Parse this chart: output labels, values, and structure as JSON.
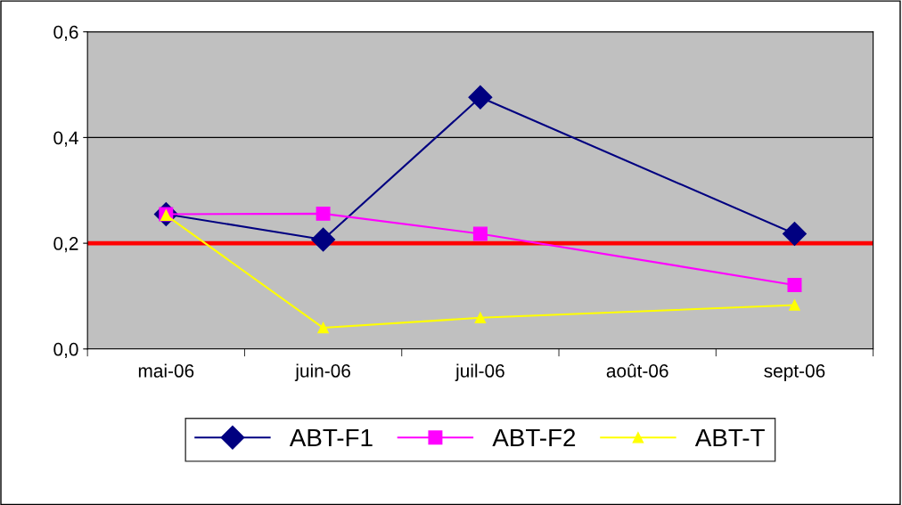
{
  "chart_data": {
    "type": "line",
    "categories": [
      "mai-06",
      "juin-06",
      "juil-06",
      "août-06",
      "sept-06"
    ],
    "series": [
      {
        "name": "ABT-F1",
        "color": "#000080",
        "marker": "diamond",
        "values": [
          0.255,
          0.207,
          0.476,
          null,
          0.218
        ]
      },
      {
        "name": "ABT-F2",
        "color": "#ff00ff",
        "marker": "square",
        "values": [
          0.255,
          0.256,
          0.218,
          null,
          0.121
        ]
      },
      {
        "name": "ABT-T",
        "color": "#ffff00",
        "marker": "triangle",
        "values": [
          0.253,
          0.04,
          0.059,
          null,
          0.083
        ]
      }
    ],
    "ylim": [
      0,
      0.6
    ],
    "yticks": [
      {
        "value": 0,
        "label": "0,0"
      },
      {
        "value": 0.2,
        "label": "0,2"
      },
      {
        "value": 0.4,
        "label": "0,4"
      },
      {
        "value": 0.6,
        "label": "0,6"
      }
    ],
    "ref_lines": [
      {
        "axis": "y",
        "value": 0.2,
        "color": "#ff0000"
      }
    ],
    "grid": "y",
    "legend": "bottom",
    "line_style": "solid"
  }
}
